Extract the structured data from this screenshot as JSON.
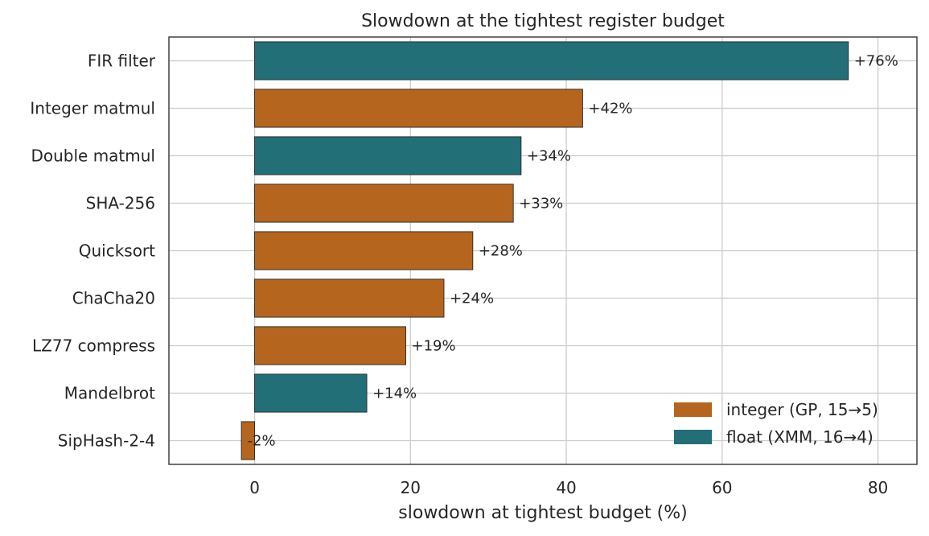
{
  "chart_data": {
    "type": "bar",
    "orientation": "horizontal",
    "title": "Slowdown at the tightest register budget",
    "xlabel": "slowdown at tightest budget (%)",
    "ylabel": "",
    "xlim": [
      -11,
      85
    ],
    "xticks": [
      "0",
      "20",
      "40",
      "60",
      "80"
    ],
    "grid": true,
    "legend_position": "bottom-right",
    "categories": [
      "FIR filter",
      "Integer matmul",
      "Double matmul",
      "SHA-256",
      "Quicksort",
      "ChaCha20",
      "LZ77 compress",
      "Mandelbrot",
      "SipHash-2-4"
    ],
    "values": [
      76.2,
      42.1,
      34.2,
      33.2,
      28.0,
      24.3,
      19.4,
      14.4,
      -1.7
    ],
    "value_labels": [
      "+76%",
      "+42%",
      "+34%",
      "+33%",
      "+28%",
      "+24%",
      "+19%",
      "+14%",
      "-2%"
    ],
    "bar_kind": [
      "float",
      "integer",
      "float",
      "integer",
      "integer",
      "integer",
      "integer",
      "float",
      "integer"
    ],
    "legend": [
      {
        "key": "integer",
        "label": "integer (GP, 15→5)",
        "color": "#b5651d"
      },
      {
        "key": "float",
        "label": "float (XMM, 16→4)",
        "color": "#226f77"
      }
    ]
  }
}
